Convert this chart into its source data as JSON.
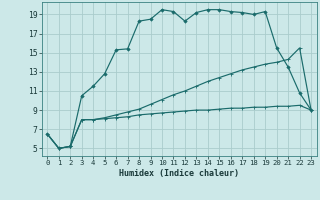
{
  "xlabel": "Humidex (Indice chaleur)",
  "background_color": "#cce8e8",
  "grid_color": "#aacccc",
  "line_color": "#1a6b6b",
  "xlim": [
    -0.5,
    23.5
  ],
  "ylim": [
    4.2,
    20.3
  ],
  "yticks": [
    5,
    7,
    9,
    11,
    13,
    15,
    17,
    19
  ],
  "xticks": [
    0,
    1,
    2,
    3,
    4,
    5,
    6,
    7,
    8,
    9,
    10,
    11,
    12,
    13,
    14,
    15,
    16,
    17,
    18,
    19,
    20,
    21,
    22,
    23
  ],
  "series1_x": [
    0,
    1,
    2,
    3,
    4,
    5,
    6,
    7,
    8,
    9,
    10,
    11,
    12,
    13,
    14,
    15,
    16,
    17,
    18,
    19,
    20,
    21,
    22,
    23
  ],
  "series1_y": [
    6.5,
    5.0,
    5.2,
    8.0,
    8.0,
    8.1,
    8.2,
    8.3,
    8.5,
    8.6,
    8.7,
    8.8,
    8.9,
    9.0,
    9.0,
    9.1,
    9.2,
    9.2,
    9.3,
    9.3,
    9.4,
    9.4,
    9.5,
    9.0
  ],
  "series2_x": [
    0,
    1,
    2,
    3,
    4,
    5,
    6,
    7,
    8,
    9,
    10,
    11,
    12,
    13,
    14,
    15,
    16,
    17,
    18,
    19,
    20,
    21,
    22,
    23
  ],
  "series2_y": [
    6.5,
    5.0,
    5.2,
    8.0,
    8.0,
    8.2,
    8.5,
    8.8,
    9.1,
    9.6,
    10.1,
    10.6,
    11.0,
    11.5,
    12.0,
    12.4,
    12.8,
    13.2,
    13.5,
    13.8,
    14.0,
    14.3,
    15.5,
    9.0
  ],
  "series3_x": [
    0,
    1,
    2,
    3,
    4,
    5,
    6,
    7,
    8,
    9,
    10,
    11,
    12,
    13,
    14,
    15,
    16,
    17,
    18,
    19,
    20,
    21,
    22,
    23
  ],
  "series3_y": [
    6.5,
    5.0,
    5.2,
    10.5,
    11.5,
    12.8,
    15.3,
    15.4,
    18.3,
    18.5,
    19.5,
    19.3,
    18.3,
    19.2,
    19.5,
    19.5,
    19.3,
    19.2,
    19.0,
    19.3,
    15.5,
    13.5,
    10.8,
    9.0
  ]
}
